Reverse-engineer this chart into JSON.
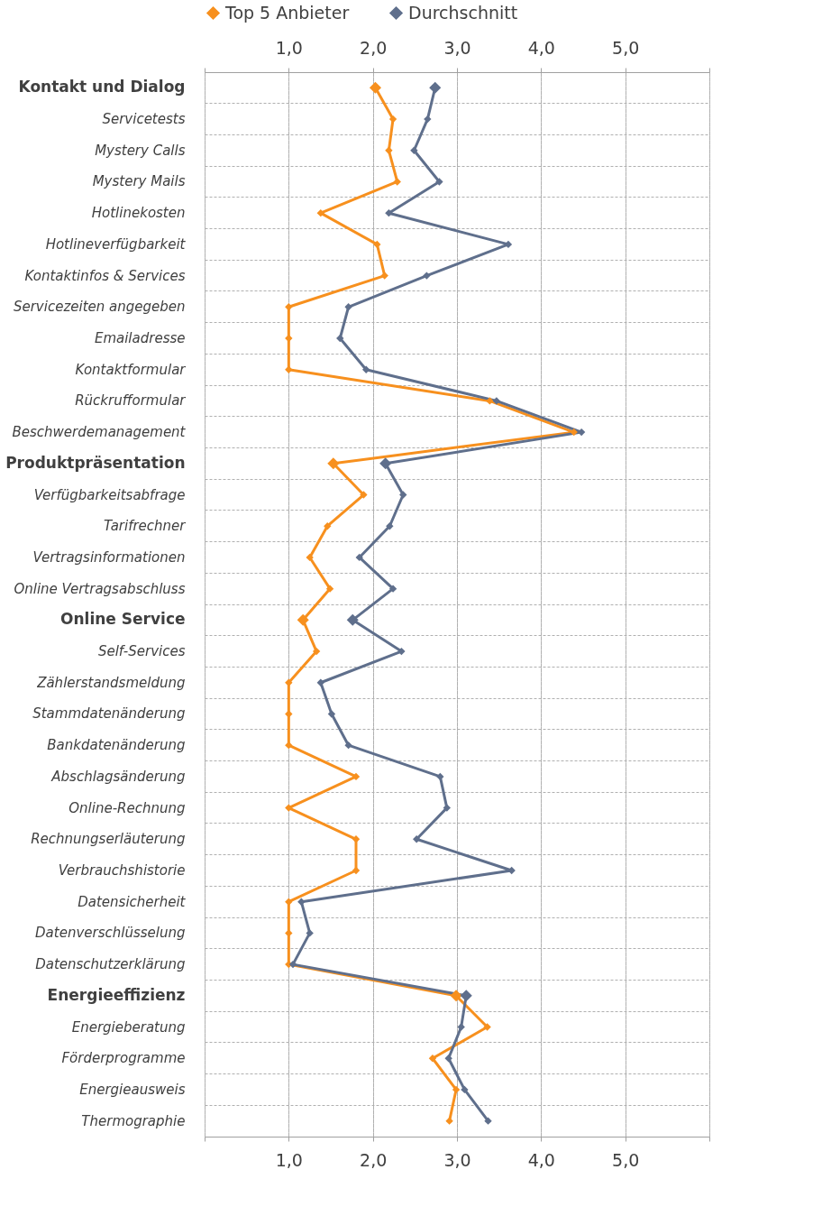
{
  "chart_data": {
    "type": "line",
    "orientation": "horizontal",
    "categories": [
      "Kontakt und Dialog",
      "Servicetests",
      "Mystery Calls",
      "Mystery Mails",
      "Hotlinekosten",
      "Hotlineverfügbarkeit",
      "Kontaktinfos & Services",
      "Servicezeiten angegeben",
      "Emailadresse",
      "Kontaktformular",
      "Rückrufformular",
      "Beschwerdemanagement",
      "Produktpräsentation",
      "Verfügbarkeitsabfrage",
      "Tarifrechner",
      "Vertragsinformationen",
      "Online Vertragsabschluss",
      "Online Service",
      "Self-Services",
      "Zählerstandsmeldung",
      "Stammdatenänderung",
      "Bankdatenänderung",
      "Abschlagsänderung",
      "Online-Rechnung",
      "Rechnungserläuterung",
      "Verbrauchshistorie",
      "Datensicherheit",
      "Datenverschlüsselung",
      "Datenschutzerklärung",
      "Energieeffizienz",
      "Energieberatung",
      "Förderprogramme",
      "Energieausweis",
      "Thermographie"
    ],
    "series": [
      {
        "name": "Top 5 Anbieter",
        "color": "#f7901e",
        "values": [
          2.03,
          2.24,
          2.19,
          2.29,
          1.38,
          2.05,
          2.14,
          1.0,
          1.0,
          1.0,
          3.39,
          4.39,
          1.53,
          1.89,
          1.46,
          1.25,
          1.49,
          1.17,
          1.33,
          1.0,
          1.0,
          1.0,
          1.8,
          1.0,
          1.8,
          1.8,
          1.0,
          1.0,
          1.0,
          2.99,
          3.36,
          2.71,
          2.99,
          2.91
        ]
      },
      {
        "name": "Durchschnitt",
        "color": "#5f6f8c",
        "values": [
          2.74,
          2.65,
          2.49,
          2.79,
          2.19,
          3.61,
          2.64,
          1.71,
          1.61,
          1.92,
          3.47,
          4.48,
          2.15,
          2.36,
          2.2,
          1.84,
          2.24,
          1.76,
          2.34,
          1.38,
          1.51,
          1.71,
          2.8,
          2.88,
          2.52,
          3.65,
          1.15,
          1.25,
          1.05,
          3.11,
          3.05,
          2.9,
          3.09,
          3.37
        ]
      }
    ],
    "xlim": [
      0,
      6
    ],
    "xticks": [
      {
        "value": 0,
        "label": null
      },
      {
        "value": 1,
        "label": "1,0"
      },
      {
        "value": 2,
        "label": "2,0"
      },
      {
        "value": 3,
        "label": "3,0"
      },
      {
        "value": 4,
        "label": "4,0"
      },
      {
        "value": 5,
        "label": "5,0"
      },
      {
        "value": 6,
        "label": null
      }
    ],
    "x2lim": [
      0,
      6
    ],
    "x2ticks": [
      {
        "value": 0,
        "label": null
      },
      {
        "value": 1,
        "label": "1,0"
      },
      {
        "value": 2,
        "label": "2,0"
      },
      {
        "value": 3,
        "label": "3,0"
      },
      {
        "value": 4,
        "label": "4,0"
      },
      {
        "value": 5,
        "label": "5,0"
      },
      {
        "value": 6,
        "label": null
      }
    ],
    "grid": true,
    "legend": "top",
    "marker": "diamond",
    "line_style": "solid"
  }
}
